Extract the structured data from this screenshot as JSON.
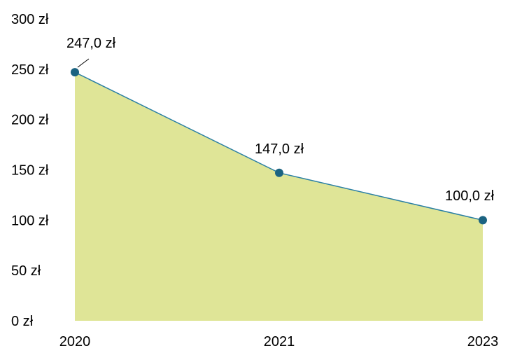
{
  "chart_data": {
    "type": "area",
    "categories": [
      "2020",
      "2021",
      "2023"
    ],
    "values": [
      247.0,
      147.0,
      100.0
    ],
    "data_labels": [
      "247,0 zł",
      "147,0 zł",
      "100,0 zł"
    ],
    "y_ticks": [
      0,
      50,
      100,
      150,
      200,
      250,
      300
    ],
    "y_tick_labels": [
      "0 zł",
      "50 zł",
      "100 zł",
      "150 zł",
      "200 zł",
      "250 zł",
      "300 zł"
    ],
    "ylim": [
      0,
      300
    ],
    "grid": false,
    "legend": "none",
    "colors": {
      "area_fill": "#dfe597",
      "line": "#2a7fa3",
      "marker": "#1b6381"
    }
  }
}
